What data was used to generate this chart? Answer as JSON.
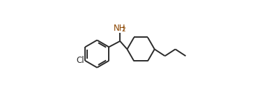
{
  "bg_color": "#ffffff",
  "line_color": "#2a2a2a",
  "line_width": 1.4,
  "nh2_label": "NH",
  "nh2_sub": "2",
  "cl_label": "Cl",
  "nh2_color": "#8B4500",
  "cl_color": "#2a2a2a",
  "label_fontsize": 8.5,
  "sub_fontsize": 6.5,
  "fig_width": 3.63,
  "fig_height": 1.36,
  "dpi": 100,
  "xlim": [
    -0.3,
    10.7
  ],
  "ylim": [
    0.2,
    5.8
  ]
}
